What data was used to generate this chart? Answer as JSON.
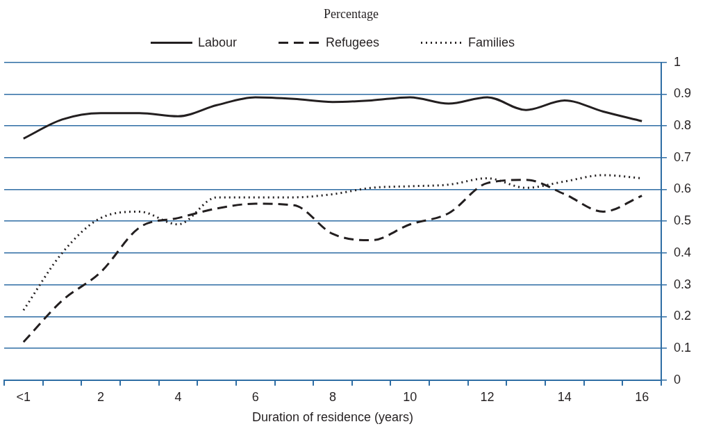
{
  "chart_data": {
    "type": "line",
    "title": "Percentage",
    "xlabel": "Duration of residence (years)",
    "categories": [
      "<1",
      null,
      "2",
      null,
      "4",
      null,
      "6",
      null,
      "8",
      null,
      "10",
      null,
      "12",
      null,
      "14",
      null,
      "16"
    ],
    "series": [
      {
        "name": "Labour",
        "color": "#231f20",
        "line_style": "solid",
        "values": [
          0.76,
          0.82,
          0.84,
          0.84,
          0.83,
          0.865,
          0.89,
          0.885,
          0.875,
          0.88,
          0.89,
          0.87,
          0.89,
          0.85,
          0.88,
          0.845,
          0.815
        ]
      },
      {
        "name": "Refugees",
        "color": "#231f20",
        "line_style": "dashed",
        "values": [
          0.12,
          0.25,
          0.34,
          0.48,
          0.51,
          0.54,
          0.555,
          0.55,
          0.46,
          0.44,
          0.49,
          0.525,
          0.62,
          0.63,
          0.585,
          0.53,
          0.58
        ]
      },
      {
        "name": "Families",
        "color": "#231f20",
        "line_style": "dotted",
        "values": [
          0.22,
          0.4,
          0.51,
          0.53,
          0.49,
          0.575,
          0.575,
          0.575,
          0.585,
          0.605,
          0.61,
          0.615,
          0.635,
          0.605,
          0.625,
          0.645,
          0.635
        ]
      }
    ],
    "ylim": [
      0,
      1
    ],
    "yticks": [
      0,
      0.1,
      0.2,
      0.3,
      0.4,
      0.5,
      0.6,
      0.7,
      0.8,
      0.9,
      1
    ],
    "grid": "y",
    "legend": "top",
    "marker": "none"
  }
}
